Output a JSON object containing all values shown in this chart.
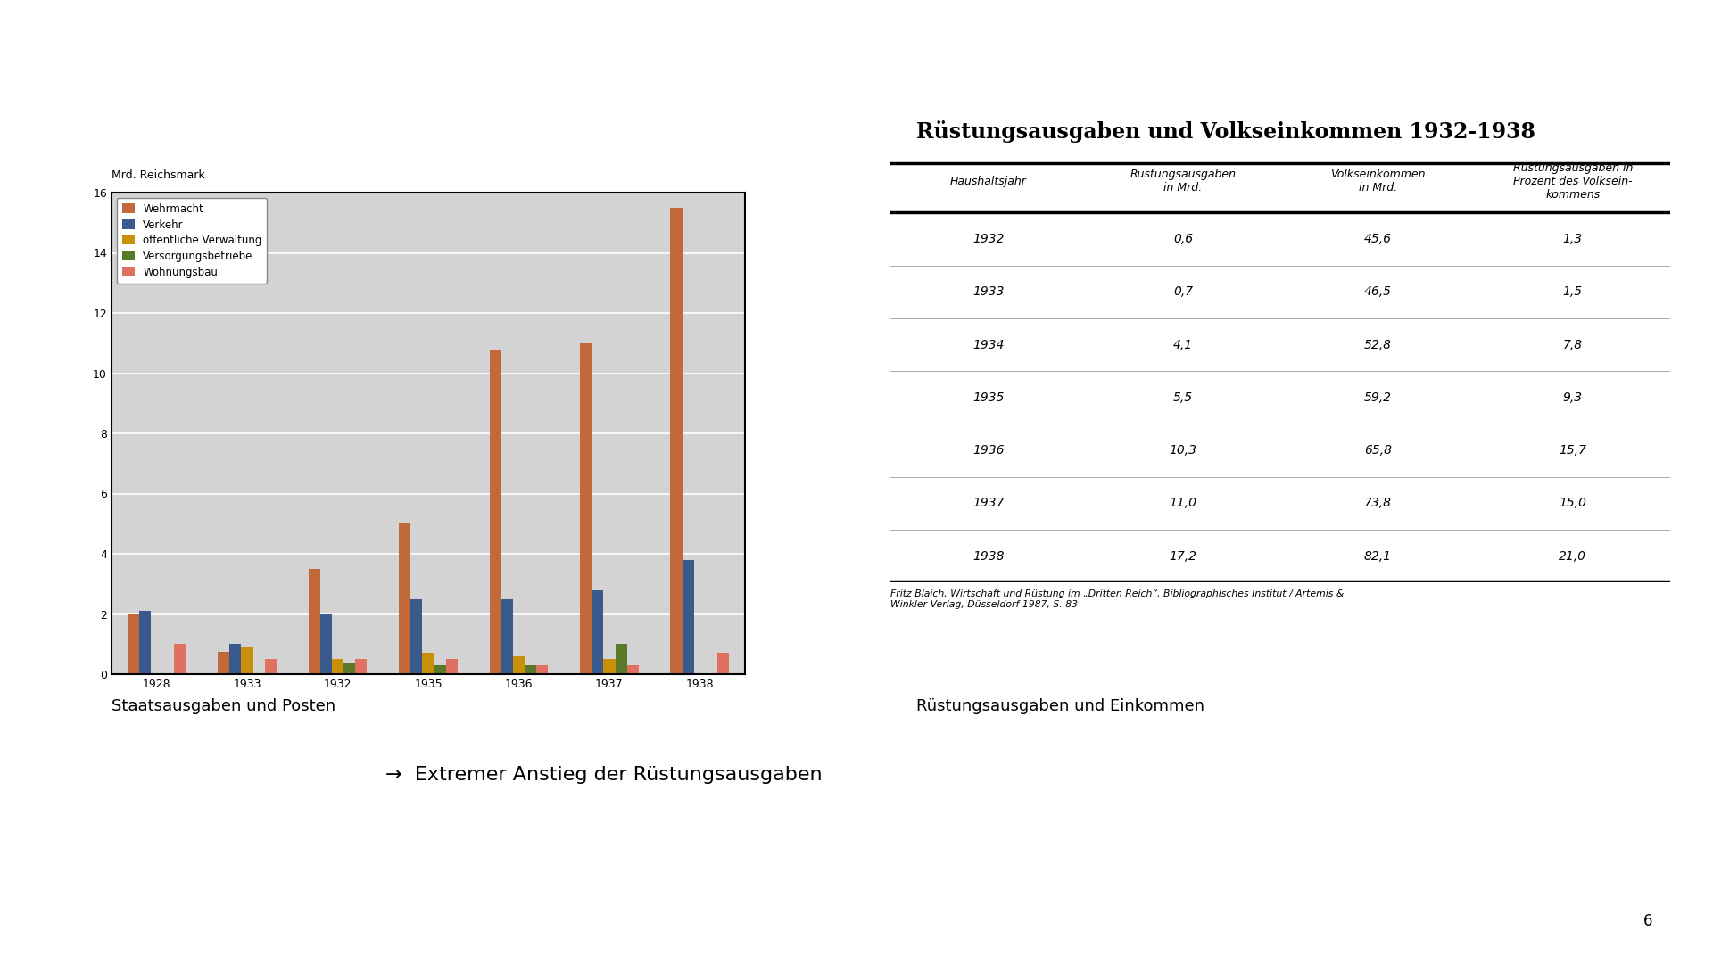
{
  "bar_chart": {
    "ylabel": "Mrd. Reichsmark",
    "ylim": [
      0,
      16
    ],
    "yticks": [
      0,
      2,
      4,
      6,
      8,
      10,
      12,
      14,
      16
    ],
    "years": [
      "1928",
      "1933",
      "1932",
      "1935",
      "1936",
      "1937",
      "1938"
    ],
    "Wehrmacht": [
      2.0,
      0.75,
      3.5,
      5.0,
      10.8,
      11.0,
      15.5
    ],
    "Verkehr": [
      2.1,
      1.0,
      2.0,
      2.5,
      2.5,
      2.8,
      3.8
    ],
    "oeffentliche_Verw": [
      0.0,
      0.9,
      0.5,
      0.7,
      0.6,
      0.5,
      0.0
    ],
    "Versorgungsbetriebe": [
      0.0,
      0.0,
      0.4,
      0.3,
      0.3,
      1.0,
      0.0
    ],
    "Wohnungsbau": [
      1.0,
      0.5,
      0.5,
      0.5,
      0.3,
      0.3,
      0.7
    ],
    "colors": {
      "Wehrmacht": "#C1693A",
      "Verkehr": "#3A5A8C",
      "oeffentliche_Verw": "#C9900A",
      "Versorgungsbetriebe": "#5A7A2A",
      "Wohnungsbau": "#E07060"
    },
    "legend_labels": {
      "Wehrmacht": "Wehrmacht",
      "Verkehr": "Verkehr",
      "oeffentliche_Verw": "öffentliche Verwaltung",
      "Versorgungsbetriebe": "Versorgungsbetriebe",
      "Wohnungsbau": "Wohnungsbau"
    },
    "bg_color": "#D3D3D3",
    "caption": "Staatsausgaben und Posten"
  },
  "table": {
    "title": "Rüstungsausgaben und Volkseinkommen 1932-1938",
    "col_headers": [
      "Haushaltsjahr",
      "Rüstungsausgaben\nin Mrd.",
      "Volkseinkommen\nin Mrd.",
      "Rüstungsausgaben in\nProzent des Volksein-\nkommens"
    ],
    "rows": [
      [
        "1932",
        "0,6",
        "45,6",
        "1,3"
      ],
      [
        "1933",
        "0,7",
        "46,5",
        "1,5"
      ],
      [
        "1934",
        "4,1",
        "52,8",
        "7,8"
      ],
      [
        "1935",
        "5,5",
        "59,2",
        "9,3"
      ],
      [
        "1936",
        "10,3",
        "65,8",
        "15,7"
      ],
      [
        "1937",
        "11,0",
        "73,8",
        "15,0"
      ],
      [
        "1938",
        "17,2",
        "82,1",
        "21,0"
      ]
    ],
    "footnote": "Fritz Blaich, Wirtschaft und Rüstung im „Dritten Reich“, Bibliographisches Institut / Artemis &\nWinkler Verlag, Düsseldorf 1987, S. 83",
    "caption": "Rüstungsausgaben und Einkommen"
  },
  "bottom_text": "→  Extremer Anstieg der Rüstungsausgaben",
  "page_number": "6",
  "background_color": "#FFFFFF"
}
